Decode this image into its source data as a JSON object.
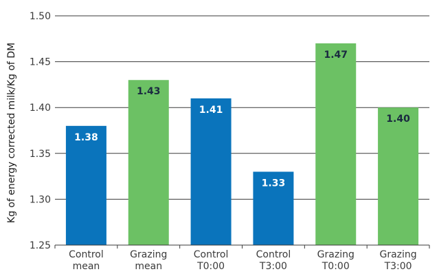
{
  "chart_data": {
    "type": "bar",
    "title": "",
    "xlabel": "",
    "ylabel": "Kg of energy corrected milk/Kg of DM",
    "ylim": [
      1.25,
      1.5
    ],
    "yticks": [
      "1.25",
      "1.30",
      "1.35",
      "1.40",
      "1.45",
      "1.50"
    ],
    "grid": true,
    "legend": "none",
    "categories": [
      [
        "Control",
        "mean"
      ],
      [
        "Grazing",
        "mean"
      ],
      [
        "Control",
        "T0:00"
      ],
      [
        "Control",
        "T3:00"
      ],
      [
        "Grazing",
        "T0:00"
      ],
      [
        "Grazing",
        "T3:00"
      ]
    ],
    "values": [
      1.38,
      1.43,
      1.41,
      1.33,
      1.47,
      1.4
    ],
    "data_labels": [
      "1.38",
      "1.43",
      "1.41",
      "1.33",
      "1.47",
      "1.40"
    ],
    "bar_groups": [
      "control",
      "grazing",
      "control",
      "control",
      "grazing",
      "grazing"
    ],
    "colors": {
      "control": "#0a74bc",
      "grazing": "#6cc164",
      "control_label": "#ffffff",
      "grazing_label": "#1a2a40",
      "grid": "#3a3a3a",
      "axis": "#3a3a3a"
    }
  }
}
